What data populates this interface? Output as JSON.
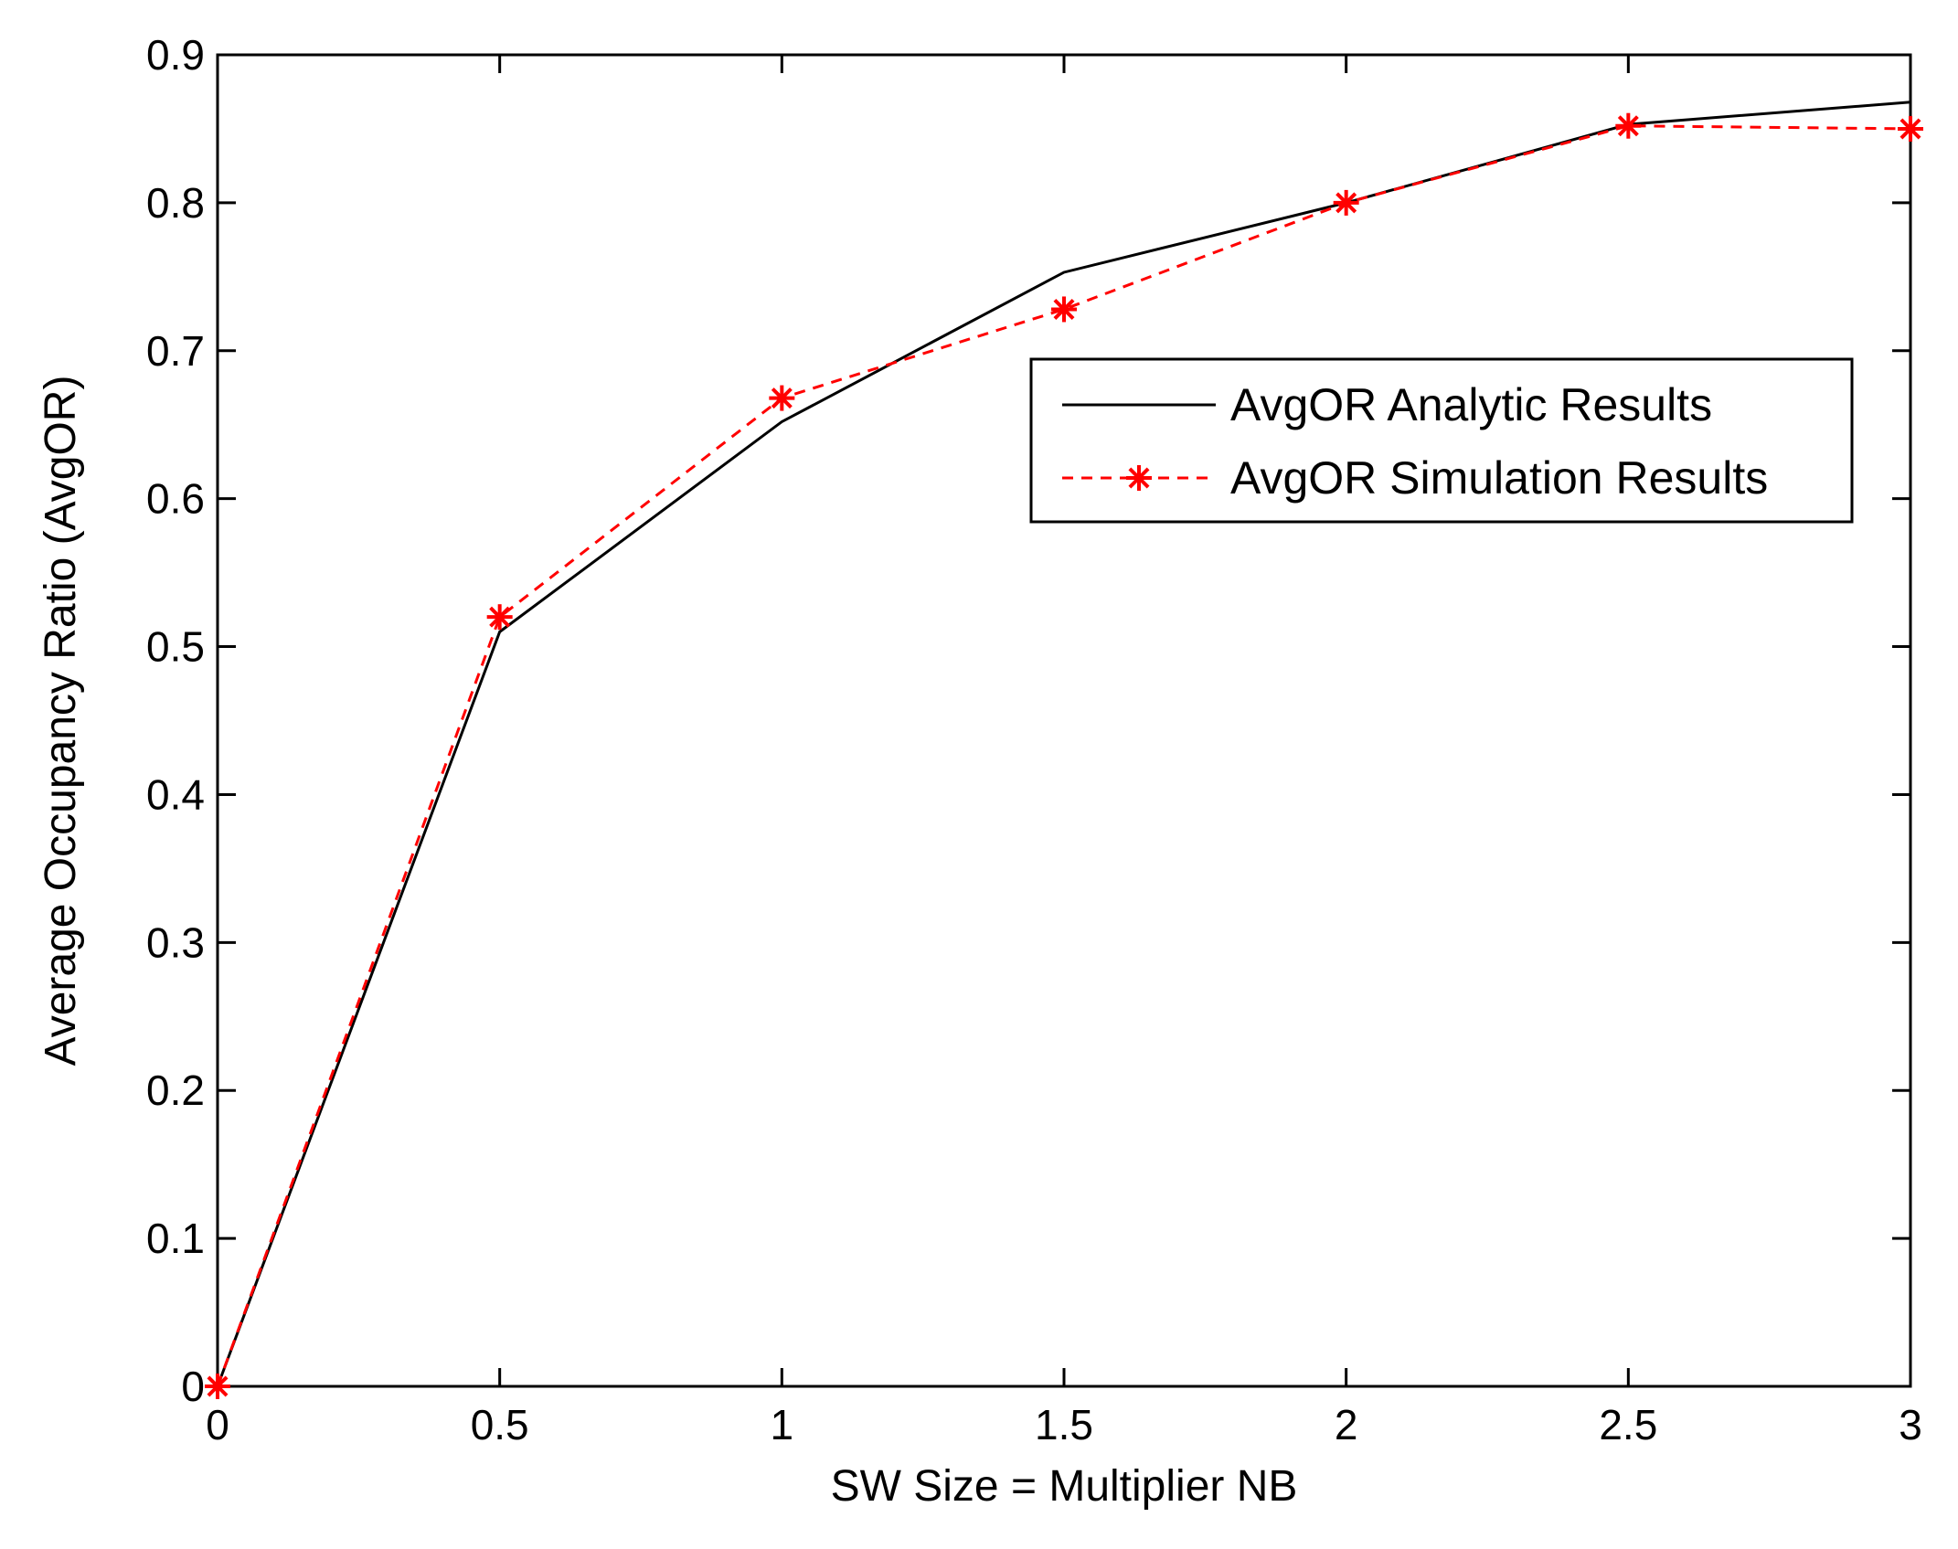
{
  "chart_data": {
    "type": "line",
    "title": "",
    "xlabel": "SW Size = Multiplier NB",
    "ylabel": "Average Occupancy Ratio (AvgOR)",
    "xlim": [
      0,
      3
    ],
    "ylim": [
      0,
      0.9
    ],
    "xticks": [
      0,
      0.5,
      1,
      1.5,
      2,
      2.5,
      3
    ],
    "xtick_labels": [
      "0",
      "0.5",
      "1",
      "1.5",
      "2",
      "2.5",
      "3"
    ],
    "yticks": [
      0,
      0.1,
      0.2,
      0.3,
      0.4,
      0.5,
      0.6,
      0.7,
      0.8,
      0.9
    ],
    "ytick_labels": [
      "0",
      "0.1",
      "0.2",
      "0.3",
      "0.4",
      "0.5",
      "0.6",
      "0.7",
      "0.8",
      "0.9"
    ],
    "grid": false,
    "legend_position": "center-right",
    "series": [
      {
        "name": "AvgOR Analytic Results",
        "color": "#000000",
        "line_style": "solid",
        "marker": "none",
        "x": [
          0,
          0.5,
          1,
          1.5,
          2,
          2.5,
          3
        ],
        "y": [
          0,
          0.51,
          0.652,
          0.753,
          0.8,
          0.853,
          0.868
        ]
      },
      {
        "name": "AvgOR Simulation Results",
        "color": "#ff0000",
        "line_style": "dashed",
        "marker": "asterisk",
        "x": [
          0,
          0.5,
          1,
          1.5,
          2,
          2.5,
          3
        ],
        "y": [
          0,
          0.52,
          0.668,
          0.728,
          0.8,
          0.852,
          0.85
        ]
      }
    ]
  }
}
